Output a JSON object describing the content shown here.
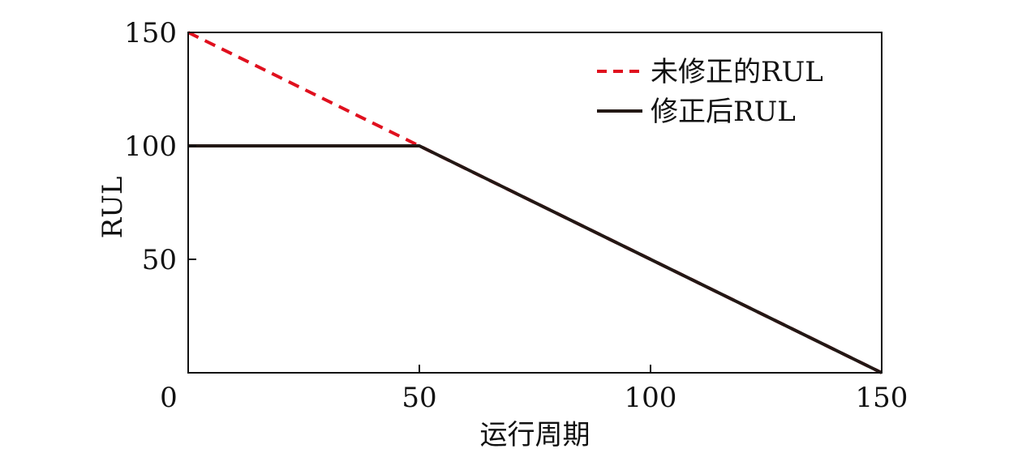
{
  "chart_data": {
    "type": "line",
    "xlabel": "运行周期",
    "ylabel": "RUL",
    "xlim": [
      0,
      150
    ],
    "ylim": [
      0,
      150
    ],
    "xticks": [
      "0",
      "50",
      "100",
      "150"
    ],
    "yticks": [
      "50",
      "100",
      "150"
    ],
    "xtick_values": [
      0,
      50,
      100,
      150
    ],
    "ytick_values": [
      50,
      100,
      150
    ],
    "grid": false,
    "legend_position": "top-right",
    "series": [
      {
        "name": "未修正的RUL",
        "style": "dashed",
        "color": "#e0101e",
        "x": [
          0,
          50,
          150
        ],
        "y": [
          150,
          100,
          0
        ]
      },
      {
        "name": "修正后RUL",
        "style": "solid",
        "color": "#231815",
        "x": [
          0,
          50,
          150
        ],
        "y": [
          100,
          100,
          0
        ]
      }
    ]
  }
}
